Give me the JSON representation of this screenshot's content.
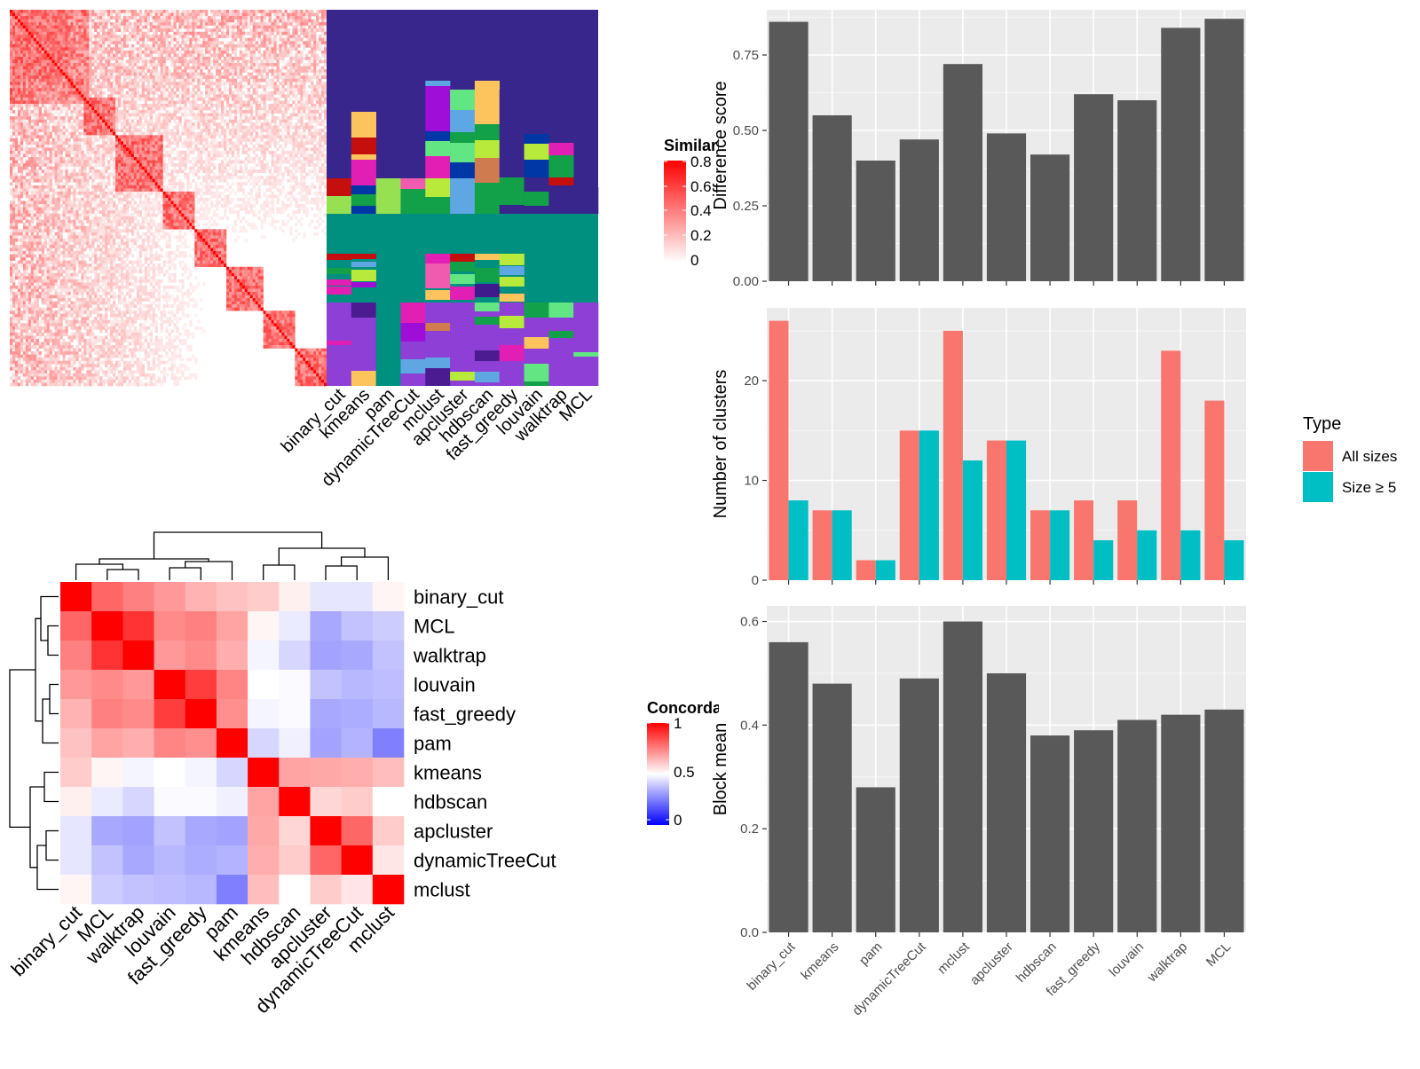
{
  "legends": {
    "similarity": {
      "title": "Similarity",
      "ticks": [
        "0.8",
        "0.6",
        "0.4",
        "0.2",
        "0"
      ]
    },
    "concordance": {
      "title": "Concordance",
      "ticks": [
        "1",
        "0.5",
        "0"
      ]
    },
    "type": {
      "title": "Type",
      "items": [
        "All sizes",
        "Size ≥ 5"
      ]
    }
  },
  "colors": {
    "bar": "#595959",
    "all_sizes": "#F8766D",
    "size_ge5": "#00BFC4",
    "panel_bg": "#EBEBEB",
    "heat_high": "#FF0000",
    "heat_mid": "#FFFFFF",
    "heat_low": "#0000FF"
  },
  "chart_data": [
    {
      "type": "heatmap",
      "name": "similarity-matrix",
      "legend_title": "Similarity",
      "color_range": [
        0,
        0.8
      ]
    },
    {
      "type": "heatmap",
      "name": "cluster-label-matrix",
      "categories": [
        "binary_cut",
        "kmeans",
        "pam",
        "dynamicTreeCut",
        "mclust",
        "apcluster",
        "hdbscan",
        "fast_greedy",
        "louvain",
        "walktrap",
        "MCL"
      ]
    },
    {
      "type": "heatmap",
      "name": "concordance-heatmap",
      "legend_title": "Concordance",
      "color_range": [
        0,
        1
      ],
      "rows": [
        "binary_cut",
        "MCL",
        "walktrap",
        "louvain",
        "fast_greedy",
        "pam",
        "kmeans",
        "hdbscan",
        "apcluster",
        "dynamicTreeCut",
        "mclust"
      ],
      "columns": [
        "binary_cut",
        "MCL",
        "walktrap",
        "louvain",
        "fast_greedy",
        "pam",
        "kmeans",
        "hdbscan",
        "apcluster",
        "dynamicTreeCut",
        "mclust"
      ],
      "values": [
        [
          1.0,
          0.8,
          0.75,
          0.7,
          0.65,
          0.62,
          0.6,
          0.53,
          0.45,
          0.45,
          0.52
        ],
        [
          0.8,
          1.0,
          0.9,
          0.73,
          0.75,
          0.68,
          0.52,
          0.46,
          0.33,
          0.38,
          0.4
        ],
        [
          0.75,
          0.9,
          1.0,
          0.7,
          0.73,
          0.66,
          0.48,
          0.42,
          0.32,
          0.33,
          0.38
        ],
        [
          0.7,
          0.73,
          0.7,
          1.0,
          0.88,
          0.74,
          0.5,
          0.49,
          0.38,
          0.36,
          0.37
        ],
        [
          0.65,
          0.75,
          0.73,
          0.88,
          1.0,
          0.72,
          0.48,
          0.49,
          0.33,
          0.34,
          0.36
        ],
        [
          0.62,
          0.68,
          0.66,
          0.74,
          0.72,
          1.0,
          0.42,
          0.47,
          0.32,
          0.35,
          0.25
        ],
        [
          0.6,
          0.52,
          0.48,
          0.5,
          0.48,
          0.42,
          1.0,
          0.68,
          0.67,
          0.66,
          0.63
        ],
        [
          0.53,
          0.46,
          0.42,
          0.49,
          0.49,
          0.47,
          0.68,
          1.0,
          0.58,
          0.6,
          0.5
        ],
        [
          0.45,
          0.33,
          0.32,
          0.38,
          0.33,
          0.32,
          0.67,
          0.58,
          1.0,
          0.8,
          0.6
        ],
        [
          0.45,
          0.38,
          0.33,
          0.36,
          0.34,
          0.35,
          0.66,
          0.6,
          0.8,
          1.0,
          0.55
        ],
        [
          0.52,
          0.4,
          0.38,
          0.37,
          0.36,
          0.25,
          0.63,
          0.5,
          0.6,
          0.55,
          1.0
        ]
      ]
    },
    {
      "type": "bar",
      "name": "difference-score",
      "ylabel": "Difference score",
      "categories": [
        "binary_cut",
        "kmeans",
        "pam",
        "dynamicTreeCut",
        "mclust",
        "apcluster",
        "hdbscan",
        "fast_greedy",
        "louvain",
        "walktrap",
        "MCL"
      ],
      "values": [
        0.86,
        0.55,
        0.4,
        0.47,
        0.72,
        0.49,
        0.42,
        0.62,
        0.6,
        0.84,
        0.87
      ],
      "ylim": [
        0,
        0.9
      ],
      "yticks": [
        0,
        0.25,
        0.5,
        0.75
      ],
      "ytick_labels": [
        "0.00",
        "0.25",
        "0.50",
        "0.75"
      ]
    },
    {
      "type": "bar",
      "name": "number-of-clusters",
      "ylabel": "Number of clusters",
      "categories": [
        "binary_cut",
        "kmeans",
        "pam",
        "dynamicTreeCut",
        "mclust",
        "apcluster",
        "hdbscan",
        "fast_greedy",
        "louvain",
        "walktrap",
        "MCL"
      ],
      "series": [
        {
          "name": "All sizes",
          "values": [
            26,
            7,
            2,
            15,
            25,
            14,
            7,
            8,
            8,
            23,
            18
          ]
        },
        {
          "name": "Size ≥ 5",
          "values": [
            8,
            7,
            2,
            15,
            12,
            14,
            7,
            4,
            5,
            5,
            4
          ]
        }
      ],
      "ylim": [
        0,
        27.3
      ],
      "yticks": [
        0,
        10,
        20
      ],
      "ytick_labels": [
        "0",
        "10",
        "20"
      ],
      "legend": "right"
    },
    {
      "type": "bar",
      "name": "block-mean",
      "ylabel": "Block mean",
      "categories": [
        "binary_cut",
        "kmeans",
        "pam",
        "dynamicTreeCut",
        "mclust",
        "apcluster",
        "hdbscan",
        "fast_greedy",
        "louvain",
        "walktrap",
        "MCL"
      ],
      "values": [
        0.56,
        0.48,
        0.28,
        0.49,
        0.6,
        0.5,
        0.38,
        0.39,
        0.41,
        0.42,
        0.43
      ],
      "ylim": [
        0,
        0.63
      ],
      "yticks": [
        0,
        0.2,
        0.4,
        0.6
      ],
      "ytick_labels": [
        "0.0",
        "0.2",
        "0.4",
        "0.6"
      ]
    }
  ]
}
